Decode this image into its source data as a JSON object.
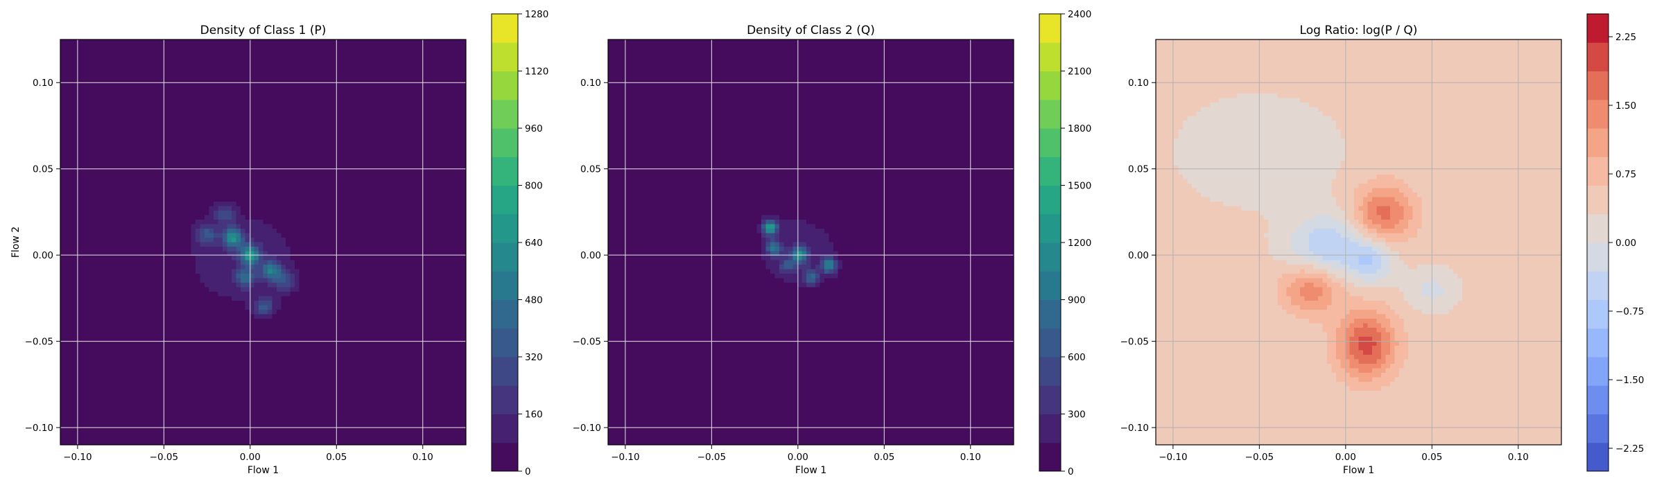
{
  "chart_data": [
    {
      "type": "heatmap",
      "title": "Density of Class 1 (P)",
      "xlabel": "Flow 1",
      "ylabel": "Flow 2",
      "xlim": [
        -0.11,
        0.125
      ],
      "ylim": [
        -0.11,
        0.125
      ],
      "xticks": [
        -0.1,
        -0.05,
        0.0,
        0.05,
        0.1
      ],
      "xtick_labels": [
        "−0.10",
        "−0.05",
        "0.00",
        "0.05",
        "0.10"
      ],
      "yticks": [
        -0.1,
        -0.05,
        0.0,
        0.05,
        0.1
      ],
      "ytick_labels": [
        "−0.10",
        "−0.05",
        "0.00",
        "0.05",
        "0.10"
      ],
      "grid": true,
      "colormap": "viridis",
      "colorbar": {
        "min": 0,
        "max": 1280,
        "ticks": [
          0,
          160,
          320,
          480,
          640,
          800,
          960,
          1120,
          1280
        ],
        "tick_labels": [
          "0",
          "160",
          "320",
          "480",
          "640",
          "800",
          "960",
          "1120",
          "1280"
        ],
        "full_scale": 1280
      },
      "blobs": [
        {
          "x": -0.005,
          "y": -0.002,
          "sx": 0.031,
          "sy": 0.026,
          "v": 120
        },
        {
          "x": -0.01,
          "y": 0.01,
          "sx": 0.004,
          "sy": 0.004,
          "v": 560
        },
        {
          "x": 0.0,
          "y": 0.0,
          "sx": 0.004,
          "sy": 0.004,
          "v": 620
        },
        {
          "x": 0.012,
          "y": -0.009,
          "sx": 0.004,
          "sy": 0.004,
          "v": 480
        },
        {
          "x": -0.003,
          "y": -0.013,
          "sx": 0.004,
          "sy": 0.004,
          "v": 360
        },
        {
          "x": 0.008,
          "y": -0.03,
          "sx": 0.004,
          "sy": 0.004,
          "v": 300
        },
        {
          "x": -0.025,
          "y": 0.012,
          "sx": 0.004,
          "sy": 0.004,
          "v": 280
        },
        {
          "x": 0.02,
          "y": -0.015,
          "sx": 0.004,
          "sy": 0.004,
          "v": 260
        },
        {
          "x": -0.015,
          "y": 0.024,
          "sx": 0.004,
          "sy": 0.004,
          "v": 240
        }
      ]
    },
    {
      "type": "heatmap",
      "title": "Density of Class 2 (Q)",
      "xlabel": "Flow 1",
      "ylabel": "",
      "xlim": [
        -0.11,
        0.125
      ],
      "ylim": [
        -0.11,
        0.125
      ],
      "xticks": [
        -0.1,
        -0.05,
        0.0,
        0.05,
        0.1
      ],
      "xtick_labels": [
        "−0.10",
        "−0.05",
        "0.00",
        "0.05",
        "0.10"
      ],
      "yticks": [
        -0.1,
        -0.05,
        0.0,
        0.05,
        0.1
      ],
      "ytick_labels": [
        "−0.10",
        "−0.05",
        "0.00",
        "0.05",
        "0.10"
      ],
      "grid": true,
      "colormap": "viridis",
      "colorbar": {
        "min": 0,
        "max": 2400,
        "ticks": [
          0,
          300,
          600,
          900,
          1200,
          1500,
          1800,
          2100,
          2400
        ],
        "tick_labels": [
          "0",
          "300",
          "600",
          "900",
          "1200",
          "1500",
          "1800",
          "2100",
          "2400"
        ],
        "full_scale": 2400
      },
      "blobs": [
        {
          "x": 0.0,
          "y": 0.002,
          "sx": 0.019,
          "sy": 0.017,
          "v": 260
        },
        {
          "x": -0.016,
          "y": 0.016,
          "sx": 0.003,
          "sy": 0.003,
          "v": 1250
        },
        {
          "x": 0.001,
          "y": 0.0,
          "sx": 0.003,
          "sy": 0.003,
          "v": 1050
        },
        {
          "x": 0.018,
          "y": -0.006,
          "sx": 0.003,
          "sy": 0.003,
          "v": 1000
        },
        {
          "x": -0.014,
          "y": 0.004,
          "sx": 0.003,
          "sy": 0.003,
          "v": 800
        },
        {
          "x": 0.008,
          "y": -0.013,
          "sx": 0.003,
          "sy": 0.003,
          "v": 700
        },
        {
          "x": -0.006,
          "y": -0.006,
          "sx": 0.003,
          "sy": 0.003,
          "v": 520
        }
      ]
    },
    {
      "type": "heatmap",
      "title": "Log Ratio: log(P / Q)",
      "xlabel": "Flow 1",
      "ylabel": "",
      "xlim": [
        -0.11,
        0.125
      ],
      "ylim": [
        -0.11,
        0.125
      ],
      "xticks": [
        -0.1,
        -0.05,
        0.0,
        0.05,
        0.1
      ],
      "xtick_labels": [
        "−0.10",
        "−0.05",
        "0.00",
        "0.05",
        "0.10"
      ],
      "yticks": [
        -0.1,
        -0.05,
        0.0,
        0.05,
        0.1
      ],
      "ytick_labels": [
        "−0.10",
        "−0.05",
        "0.00",
        "0.05",
        "0.10"
      ],
      "grid": true,
      "colormap": "coolwarm",
      "colorbar": {
        "min": -2.5,
        "max": 2.5,
        "ticks": [
          -2.25,
          -1.5,
          -0.75,
          0.0,
          0.75,
          1.5,
          2.25
        ],
        "tick_labels": [
          "−2.25",
          "−1.50",
          "−0.75",
          "0.00",
          "0.75",
          "1.50",
          "2.25"
        ]
      },
      "background_value": 0.4,
      "blobs": [
        {
          "x": 0.022,
          "y": 0.024,
          "sx": 0.012,
          "sy": 0.012,
          "v": 1.3
        },
        {
          "x": 0.012,
          "y": -0.052,
          "sx": 0.012,
          "sy": 0.014,
          "v": 1.6
        },
        {
          "x": -0.02,
          "y": -0.02,
          "sx": 0.012,
          "sy": 0.01,
          "v": 1.1
        },
        {
          "x": -0.01,
          "y": 0.005,
          "sx": 0.016,
          "sy": 0.013,
          "v": -1.0
        },
        {
          "x": 0.015,
          "y": -0.003,
          "sx": 0.009,
          "sy": 0.009,
          "v": -0.9
        },
        {
          "x": -0.05,
          "y": 0.06,
          "sx": 0.03,
          "sy": 0.02,
          "v": -0.35
        },
        {
          "x": 0.05,
          "y": -0.02,
          "sx": 0.01,
          "sy": 0.008,
          "v": -0.5
        }
      ]
    }
  ]
}
